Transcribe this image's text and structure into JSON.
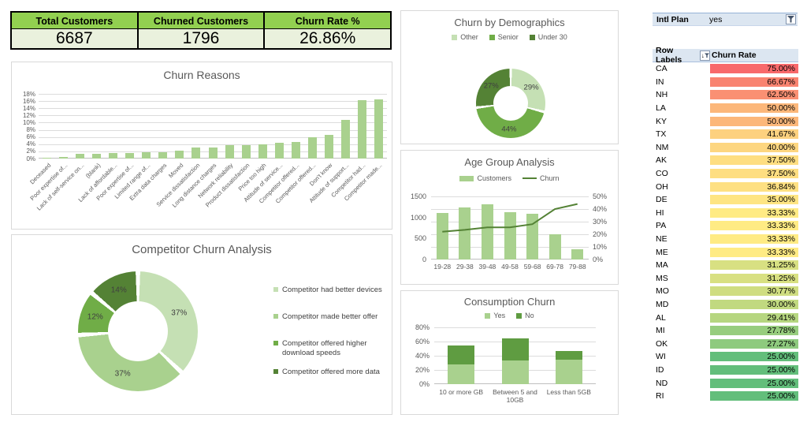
{
  "kpi": {
    "cards": [
      {
        "label": "Total Customers",
        "value": "6687"
      },
      {
        "label": "Churned Customers",
        "value": "1796"
      },
      {
        "label": "Churn Rate %",
        "value": "26.86%"
      }
    ]
  },
  "slicer": {
    "label": "Intl Plan",
    "value": "yes",
    "icon": "filter-funnel"
  },
  "colors": {
    "kpi_header_green": "#92D050",
    "kpi_value_bg": "#EAF1DD",
    "green_lightest": "#C5E0B4",
    "green_light": "#A9D18E",
    "green_mid": "#70AD47",
    "green_dark": "#548235",
    "no_series_green": "#5F9C41",
    "panel_border": "#D9D9D9",
    "title_gray": "#595959",
    "slicer_bg": "#DCE6F1"
  },
  "chart_data": [
    {
      "type": "bar",
      "title": "Churn Reasons",
      "categories": [
        "Deceased",
        "Poor expertise of...",
        "Lack of self-service on...",
        "(blank)",
        "Lack of affordable...",
        "Poor expertise of...",
        "Limited range of...",
        "Extra data charges",
        "Moved",
        "Service dissatisfaction",
        "Long distance charges",
        "Network reliability",
        "Product dissatisfaction",
        "Price too high",
        "Attitude of service...",
        "Competitor offered...",
        "Competitor offered...",
        "Don't know",
        "Attitude of support...",
        "Competitor had...",
        "Competitor made..."
      ],
      "values": [
        0.2,
        0.4,
        1.3,
        1.3,
        1.5,
        1.5,
        1.8,
        1.8,
        2.2,
        3.0,
        3.0,
        3.7,
        3.8,
        4.0,
        4.3,
        4.7,
        5.9,
        6.5,
        10.8,
        16.2,
        16.4
      ],
      "unit": "%",
      "ylim": [
        0,
        18
      ],
      "ytick_step": 2,
      "bar_color": "#A9D18E",
      "grid": true,
      "legend_position": "none"
    },
    {
      "type": "pie",
      "title": "Churn by Demographics",
      "labels": [
        "Other",
        "Senior",
        "Under 30"
      ],
      "values": [
        29,
        44,
        27
      ],
      "data_labels": [
        "29%",
        "44%",
        "27%"
      ],
      "colors": [
        "#C5E0B4",
        "#70AD47",
        "#548235"
      ],
      "legend_position": "top",
      "donut": true
    },
    {
      "type": "line",
      "title": "Age Group Analysis",
      "categories": [
        "19-28",
        "29-38",
        "39-48",
        "49-58",
        "59-68",
        "69-78",
        "79-88"
      ],
      "series": [
        {
          "name": "Customers",
          "type": "bar",
          "axis": "left",
          "color": "#A9D18E",
          "values": [
            1100,
            1245,
            1320,
            1130,
            1085,
            605,
            240
          ]
        },
        {
          "name": "Churn",
          "type": "line",
          "axis": "right",
          "color": "#548235",
          "values": [
            22,
            23.5,
            25.5,
            25.5,
            28,
            40,
            44
          ]
        }
      ],
      "left_ylim": [
        0,
        1500
      ],
      "left_ticks": [
        0,
        500,
        1000,
        1500
      ],
      "right_ylim": [
        0,
        50
      ],
      "right_tick_step": 10,
      "right_unit": "%",
      "grid": true,
      "legend_position": "top"
    },
    {
      "type": "bar",
      "title": "Consumption Churn",
      "stacked": true,
      "categories": [
        "10 or more GB",
        "Between 5 and 10GB",
        "Less than 5GB"
      ],
      "series": [
        {
          "name": "Yes",
          "color": "#A9D18E",
          "values": [
            28,
            33,
            35
          ]
        },
        {
          "name": "No",
          "color": "#5F9C41",
          "values": [
            27,
            32,
            12
          ]
        }
      ],
      "unit": "%",
      "ylim": [
        0,
        80
      ],
      "ytick_step": 20,
      "grid": true,
      "legend_position": "top"
    },
    {
      "type": "pie",
      "title": "Competitor Churn Analysis",
      "labels": [
        "Competitor had better devices",
        "Competitor made better offer",
        "Competitor offered higher download speeds",
        "Competitor offered more data"
      ],
      "values": [
        37,
        37,
        12,
        14
      ],
      "data_labels": [
        "37%",
        "37%",
        "12%",
        "14%"
      ],
      "colors": [
        "#C5E0B4",
        "#A9D18E",
        "#70AD47",
        "#548235"
      ],
      "legend_position": "right",
      "donut": true
    },
    {
      "type": "table",
      "columns": [
        "Row Labels",
        "Churn Rate"
      ],
      "header_icons": [
        "sort-descending-filter"
      ],
      "rows": [
        [
          "CA",
          "75.00%",
          "#F8696B"
        ],
        [
          "IN",
          "66.67%",
          "#F98370"
        ],
        [
          "NH",
          "62.50%",
          "#FA9073"
        ],
        [
          "LA",
          "50.00%",
          "#FCB77A"
        ],
        [
          "KY",
          "50.00%",
          "#FCB77A"
        ],
        [
          "TX",
          "41.67%",
          "#FDD17F"
        ],
        [
          "NM",
          "40.00%",
          "#FDD680"
        ],
        [
          "AK",
          "37.50%",
          "#FEDE81"
        ],
        [
          "CO",
          "37.50%",
          "#FEDE81"
        ],
        [
          "OH",
          "36.84%",
          "#FEE082"
        ],
        [
          "DE",
          "35.00%",
          "#FEE583"
        ],
        [
          "HI",
          "33.33%",
          "#FFEB84"
        ],
        [
          "PA",
          "33.33%",
          "#FFEB84"
        ],
        [
          "NE",
          "33.33%",
          "#FFEB84"
        ],
        [
          "ME",
          "33.33%",
          "#FFEB84"
        ],
        [
          "MA",
          "31.25%",
          "#D8E082"
        ],
        [
          "MS",
          "31.25%",
          "#D8E082"
        ],
        [
          "MO",
          "30.77%",
          "#CFDD81"
        ],
        [
          "MD",
          "30.00%",
          "#C1D980"
        ],
        [
          "AL",
          "29.41%",
          "#B6D680"
        ],
        [
          "MI",
          "27.78%",
          "#97CD7E"
        ],
        [
          "OK",
          "27.27%",
          "#8ECA7E"
        ],
        [
          "WI",
          "25.00%",
          "#63BE7B"
        ],
        [
          "ID",
          "25.00%",
          "#63BE7B"
        ],
        [
          "ND",
          "25.00%",
          "#63BE7B"
        ],
        [
          "RI",
          "25.00%",
          "#63BE7B"
        ]
      ]
    }
  ]
}
